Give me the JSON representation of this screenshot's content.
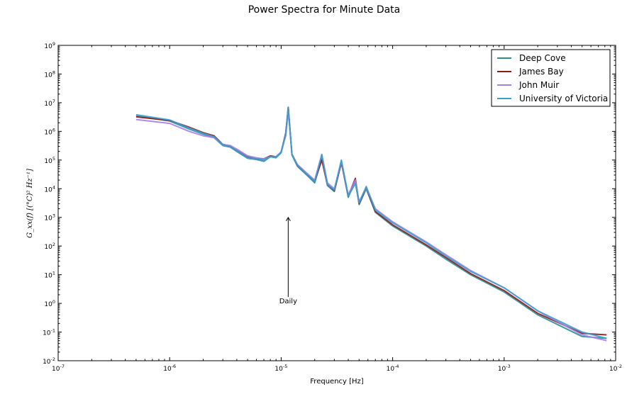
{
  "chart_data": {
    "type": "line",
    "title": "Power Spectra for Minute Data",
    "xlabel": "Frequency [Hz]",
    "ylabel": "G_xx(f) [(°C)² Hz⁻¹]",
    "xscale": "log",
    "yscale": "log",
    "xlim": [
      1e-07,
      0.01
    ],
    "ylim": [
      0.01,
      1000000000.0
    ],
    "grid": false,
    "legend_position": "top-right",
    "x_ticks": [
      {
        "base": "10",
        "exp": "-7"
      },
      {
        "base": "10",
        "exp": "-6"
      },
      {
        "base": "10",
        "exp": "-5"
      },
      {
        "base": "10",
        "exp": "-4"
      },
      {
        "base": "10",
        "exp": "-3"
      },
      {
        "base": "10",
        "exp": "-2"
      }
    ],
    "y_ticks": [
      {
        "base": "10",
        "exp": "-2"
      },
      {
        "base": "10",
        "exp": "-1"
      },
      {
        "base": "10",
        "exp": "0"
      },
      {
        "base": "10",
        "exp": "1"
      },
      {
        "base": "10",
        "exp": "2"
      },
      {
        "base": "10",
        "exp": "3"
      },
      {
        "base": "10",
        "exp": "4"
      },
      {
        "base": "10",
        "exp": "5"
      },
      {
        "base": "10",
        "exp": "6"
      },
      {
        "base": "10",
        "exp": "7"
      },
      {
        "base": "10",
        "exp": "8"
      },
      {
        "base": "10",
        "exp": "9"
      }
    ],
    "annotations": [
      {
        "text": "Daily",
        "x": 1.157e-05,
        "y": 1.0,
        "arrow_to": {
          "x": 1.157e-05,
          "y": 1000
        }
      }
    ],
    "series": [
      {
        "name": "Deep Cove",
        "color": "#2a8f98",
        "x": [
          5e-07,
          1e-06,
          1.5e-06,
          2e-06,
          2.5e-06,
          3e-06,
          3.5e-06,
          4e-06,
          5e-06,
          6e-06,
          7e-06,
          8e-06,
          9e-06,
          1e-05,
          1.1e-05,
          1.157e-05,
          1.25e-05,
          1.4e-05,
          1.7e-05,
          2e-05,
          2.315e-05,
          2.6e-05,
          3e-05,
          3.47e-05,
          4e-05,
          4.63e-05,
          5e-05,
          5.79e-05,
          7e-05,
          0.0001,
          0.0002,
          0.0003,
          0.0005,
          0.001,
          0.002,
          0.005,
          0.0083
        ],
        "y": [
          3500000.0,
          2300000.0,
          1200000.0,
          800000.0,
          600000.0,
          320000.0,
          280000.0,
          200000.0,
          115000.0,
          105000.0,
          90000.0,
          130000.0,
          120000.0,
          180000.0,
          800000.0,
          7000000.0,
          150000.0,
          60000.0,
          30000.0,
          16000.0,
          120000.0,
          13000.0,
          8000.0,
          90000.0,
          5000.0,
          20000.0,
          2800.0,
          10000.0,
          1500.0,
          500.0,
          100.0,
          35.0,
          10.0,
          2.5,
          0.4,
          0.07,
          0.06
        ]
      },
      {
        "name": "James Bay",
        "color": "#8b1a1a",
        "x": [
          5e-07,
          1e-06,
          1.5e-06,
          2e-06,
          2.5e-06,
          3e-06,
          3.5e-06,
          4e-06,
          5e-06,
          6e-06,
          7e-06,
          8e-06,
          9e-06,
          1e-05,
          1.1e-05,
          1.157e-05,
          1.25e-05,
          1.4e-05,
          1.7e-05,
          2e-05,
          2.315e-05,
          2.6e-05,
          3e-05,
          3.47e-05,
          4e-05,
          4.63e-05,
          5e-05,
          5.79e-05,
          7e-05,
          0.0001,
          0.0002,
          0.0003,
          0.0005,
          0.001,
          0.002,
          0.005,
          0.0083
        ],
        "y": [
          3200000.0,
          2400000.0,
          1400000.0,
          900000.0,
          700000.0,
          350000.0,
          300000.0,
          220000.0,
          130000.0,
          110000.0,
          110000.0,
          140000.0,
          130000.0,
          190000.0,
          900000.0,
          6500000.0,
          160000.0,
          65000.0,
          32000.0,
          18000.0,
          100000.0,
          14000.0,
          8500.0,
          80000.0,
          5500.0,
          23000.0,
          3000.0,
          11000.0,
          1600.0,
          550.0,
          110.0,
          40.0,
          11.0,
          2.8,
          0.45,
          0.09,
          0.08
        ]
      },
      {
        "name": "John Muir",
        "color": "#a67ee8",
        "x": [
          5e-07,
          1e-06,
          1.5e-06,
          2e-06,
          2.5e-06,
          3e-06,
          3.5e-06,
          4e-06,
          5e-06,
          6e-06,
          7e-06,
          8e-06,
          9e-06,
          1e-05,
          1.1e-05,
          1.157e-05,
          1.25e-05,
          1.4e-05,
          1.7e-05,
          2e-05,
          2.315e-05,
          2.6e-05,
          3e-05,
          3.47e-05,
          4e-05,
          4.63e-05,
          5e-05,
          5.79e-05,
          7e-05,
          0.0001,
          0.0002,
          0.0003,
          0.0005,
          0.001,
          0.002,
          0.005,
          0.0083
        ],
        "y": [
          2600000.0,
          1900000.0,
          1000000.0,
          700000.0,
          600000.0,
          350000.0,
          320000.0,
          240000.0,
          140000.0,
          120000.0,
          110000.0,
          130000.0,
          130000.0,
          190000.0,
          700000.0,
          5000000.0,
          160000.0,
          70000.0,
          35000.0,
          20000.0,
          160000.0,
          16000.0,
          10000.0,
          90000.0,
          6000.0,
          20000.0,
          3500.0,
          11000.0,
          2000.0,
          700.0,
          140.0,
          50.0,
          14.0,
          3.5,
          0.55,
          0.08,
          0.05
        ]
      },
      {
        "name": "University of Victoria",
        "color": "#3a9fd0",
        "x": [
          5e-07,
          1e-06,
          1.5e-06,
          2e-06,
          2.5e-06,
          3e-06,
          3.5e-06,
          4e-06,
          5e-06,
          6e-06,
          7e-06,
          8e-06,
          9e-06,
          1e-05,
          1.1e-05,
          1.157e-05,
          1.25e-05,
          1.4e-05,
          1.7e-05,
          2e-05,
          2.315e-05,
          2.6e-05,
          3e-05,
          3.47e-05,
          4e-05,
          4.63e-05,
          5e-05,
          5.79e-05,
          7e-05,
          0.0001,
          0.0002,
          0.0003,
          0.0005,
          0.001,
          0.002,
          0.005,
          0.0083
        ],
        "y": [
          3800000.0,
          2500000.0,
          1300000.0,
          850000.0,
          650000.0,
          340000.0,
          290000.0,
          210000.0,
          120000.0,
          110000.0,
          100000.0,
          130000.0,
          125000.0,
          190000.0,
          850000.0,
          7000000.0,
          160000.0,
          65000.0,
          32000.0,
          18000.0,
          150000.0,
          14000.0,
          9000.0,
          100000.0,
          5500.0,
          15000.0,
          3200.0,
          12000.0,
          1800.0,
          650.0,
          130.0,
          45.0,
          13.0,
          3.5,
          0.55,
          0.1,
          0.06
        ]
      }
    ]
  }
}
